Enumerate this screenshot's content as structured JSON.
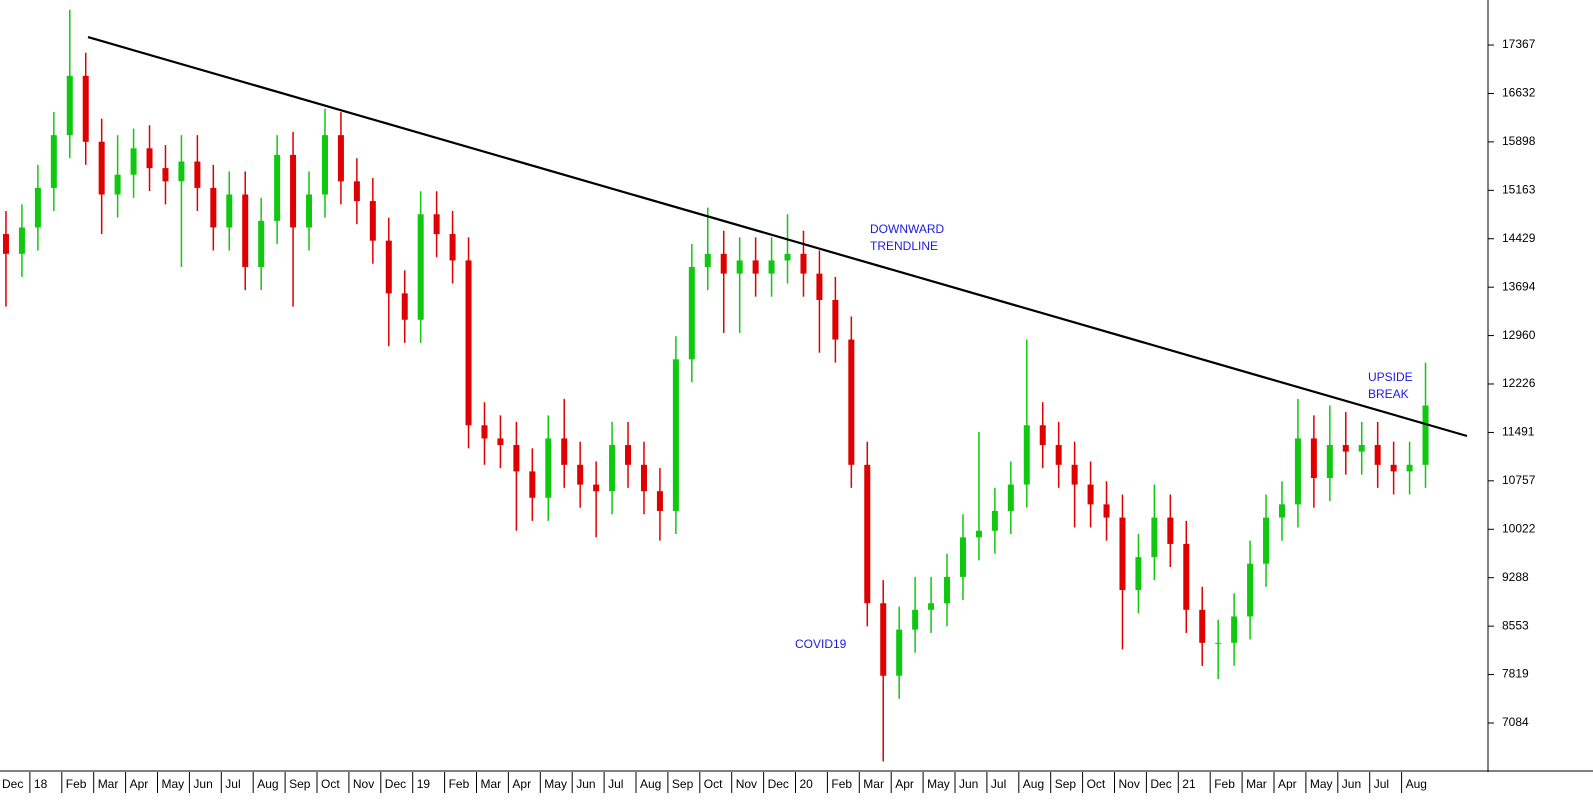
{
  "chart_data": {
    "type": "candlestick",
    "x_labels": [
      "Dec",
      "18",
      "Feb",
      "Mar",
      "Apr",
      "May",
      "Jun",
      "Jul",
      "Aug",
      "Sep",
      "Oct",
      "Nov",
      "Dec",
      "19",
      "Feb",
      "Mar",
      "Apr",
      "May",
      "Jun",
      "Jul",
      "Aug",
      "Sep",
      "Oct",
      "Nov",
      "Dec",
      "20",
      "Feb",
      "Mar",
      "Apr",
      "May",
      "Jun",
      "Jul",
      "Aug",
      "Sep",
      "Oct",
      "Nov",
      "Dec",
      "21",
      "Feb",
      "Mar",
      "Apr",
      "May",
      "Jun",
      "Jul",
      "Aug"
    ],
    "open": [
      14500,
      14200,
      14600,
      15200,
      16000,
      16900,
      15900,
      15100,
      15400,
      15800,
      15500,
      15300,
      15600,
      15200,
      14600,
      15100,
      14000,
      14700,
      15700,
      14600,
      15100,
      16000,
      15300,
      15000,
      14400,
      13600,
      13200,
      14800,
      14500,
      14100,
      11600,
      11400,
      11300,
      10900,
      10500,
      11400,
      11000,
      10700,
      10600,
      11300,
      11000,
      10600,
      10300,
      12600,
      14000,
      14200,
      13900,
      14100,
      13900,
      14100,
      14200,
      13900,
      13500,
      12900,
      11000,
      8900,
      7800,
      8500,
      8800,
      8900,
      9300,
      9900,
      10000,
      10300,
      10700,
      11600,
      11300,
      11000,
      10700,
      10400,
      10200,
      9100,
      9600,
      10200,
      9800,
      8800,
      8300,
      8300,
      8700,
      9500,
      10200,
      10400,
      11400,
      10800,
      11300,
      11200,
      11300,
      11000,
      10900,
      11000
    ],
    "high": [
      14850,
      14950,
      15550,
      16350,
      17900,
      17250,
      16250,
      16000,
      16100,
      16150,
      15850,
      16000,
      16000,
      15550,
      15450,
      15450,
      15050,
      16000,
      16050,
      15450,
      16400,
      16350,
      15650,
      15350,
      14750,
      13950,
      15150,
      15150,
      14850,
      14450,
      11950,
      11750,
      11650,
      11250,
      11750,
      12000,
      11350,
      11050,
      11650,
      11650,
      11350,
      10950,
      12950,
      14350,
      14900,
      14550,
      14450,
      14450,
      14450,
      14800,
      14550,
      14250,
      13850,
      13250,
      11350,
      9250,
      8850,
      9300,
      9300,
      9650,
      10250,
      11500,
      10650,
      11050,
      12900,
      11950,
      11650,
      11350,
      11050,
      10750,
      10550,
      9950,
      10700,
      10550,
      10150,
      9150,
      8650,
      9050,
      9850,
      10550,
      10750,
      12000,
      11750,
      11900,
      11800,
      11650,
      11650,
      11350,
      11350,
      12550
    ],
    "low": [
      13400,
      13850,
      14250,
      14850,
      15650,
      15550,
      14500,
      14750,
      15050,
      15150,
      14950,
      14000,
      14850,
      14250,
      14250,
      13650,
      13650,
      14350,
      13400,
      14250,
      14750,
      14950,
      14650,
      14050,
      12800,
      12850,
      12850,
      14150,
      13750,
      11250,
      11000,
      10950,
      10000,
      10150,
      10150,
      10650,
      10350,
      9900,
      10250,
      10650,
      10250,
      9850,
      9950,
      12250,
      13650,
      13000,
      13000,
      13550,
      13550,
      13750,
      13550,
      12700,
      12550,
      10650,
      8550,
      6500,
      7450,
      8150,
      8450,
      8550,
      8950,
      9550,
      9650,
      9950,
      10350,
      10950,
      10650,
      10050,
      10050,
      9850,
      8200,
      8750,
      9250,
      9450,
      8450,
      7950,
      7750,
      7950,
      8350,
      9150,
      9850,
      10050,
      10350,
      10450,
      10850,
      10850,
      10650,
      10550,
      10550,
      10650
    ],
    "close": [
      14200,
      14600,
      15200,
      16000,
      16900,
      15900,
      15100,
      15400,
      15800,
      15500,
      15300,
      15600,
      15200,
      14600,
      15100,
      14000,
      14700,
      15700,
      14600,
      15100,
      16000,
      15300,
      15000,
      14400,
      13600,
      13200,
      14800,
      14500,
      14100,
      11600,
      11400,
      11300,
      10900,
      10500,
      11400,
      11000,
      10700,
      10600,
      11300,
      11000,
      10600,
      10300,
      12600,
      14000,
      14200,
      13900,
      14100,
      13900,
      14100,
      14200,
      13900,
      13500,
      12900,
      11000,
      8900,
      7800,
      8500,
      8800,
      8900,
      9300,
      9900,
      10000,
      10300,
      10700,
      11600,
      11300,
      11000,
      10700,
      10400,
      10200,
      9100,
      9600,
      10200,
      9800,
      8800,
      8300,
      8300,
      8700,
      9500,
      10200,
      10400,
      11400,
      10800,
      11300,
      11200,
      11300,
      11000,
      10900,
      11000,
      11900
    ],
    "up_color": "#10c810",
    "down_color": "#e00000",
    "ylim": [
      6371,
      18050
    ],
    "yticks": [
      7084,
      7819,
      8553,
      9288,
      10022,
      10757,
      11491,
      12226,
      12960,
      13694,
      14429,
      15163,
      15898,
      16632,
      17367
    ],
    "trendline": {
      "start": 17488,
      "end": 11437,
      "color": "#000000"
    },
    "annotation_color": "#1a1ae6",
    "annotations": [
      {
        "lines": [
          "DOWNWARD",
          "TRENDLINE"
        ]
      },
      {
        "lines": [
          "UPSIDE",
          "BREAK"
        ]
      },
      {
        "lines": [
          "COVID19"
        ]
      }
    ]
  }
}
